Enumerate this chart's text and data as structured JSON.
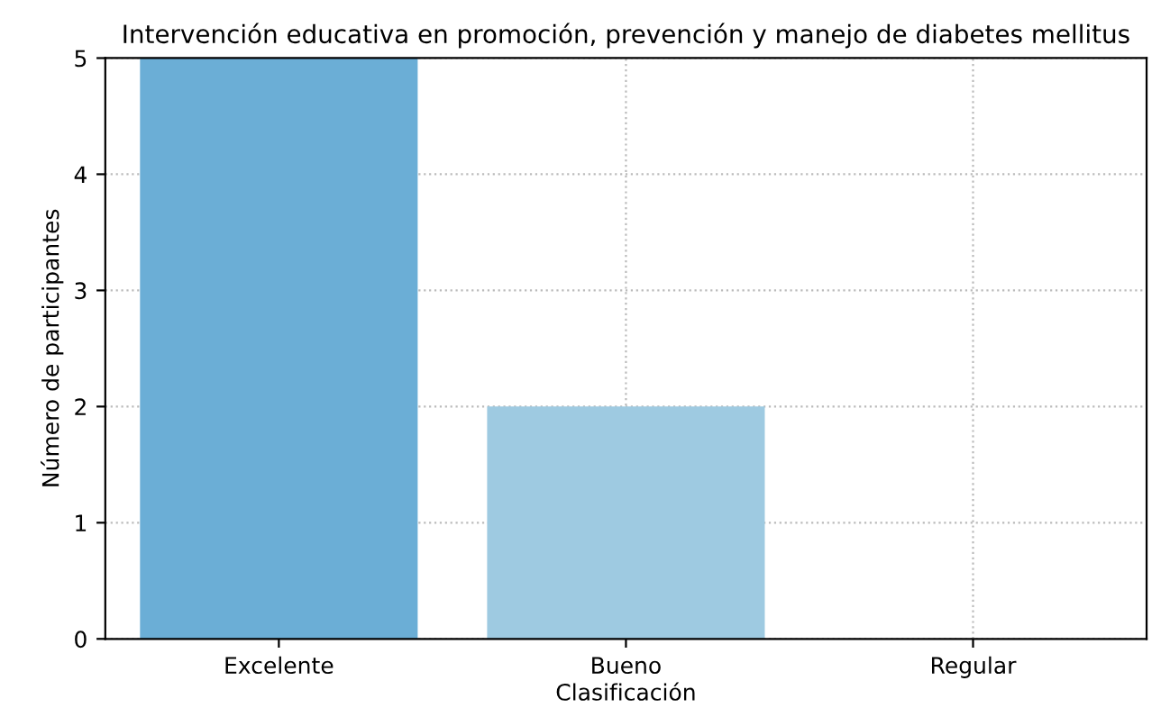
{
  "chart_data": {
    "type": "bar",
    "title": "Intervención educativa en promoción, prevención y manejo de diabetes mellitus",
    "xlabel": "Clasificación",
    "ylabel": "Número de participantes",
    "categories": [
      "Excelente",
      "Bueno",
      "Regular"
    ],
    "values": [
      5,
      2,
      0
    ],
    "colors": [
      "#6baed6",
      "#9ecae1",
      "#c6dbef"
    ],
    "ylim": [
      0,
      5
    ],
    "yticks": [
      0,
      1,
      2,
      3,
      4,
      5
    ],
    "grid": true
  }
}
